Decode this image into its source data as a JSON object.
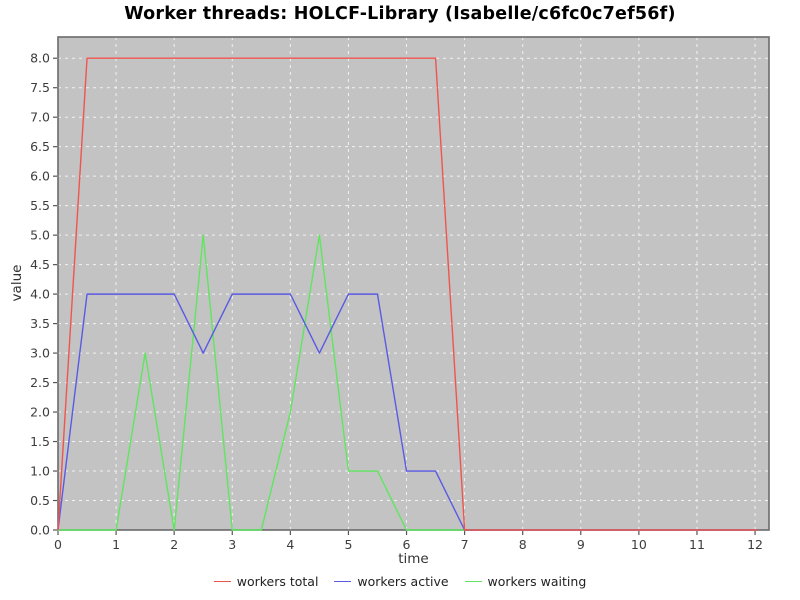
{
  "colors": {
    "page_bg": "#ffffff",
    "plot_bg": "#c3c3c3",
    "grid": "#f2f2f2",
    "frame": "#6a6a6a",
    "tick": "#555555",
    "tick_text": "#3d3d3d",
    "title_text": "#000000",
    "axis_label_text": "#333333",
    "legend_text": "#222222"
  },
  "chart_data": {
    "type": "line",
    "title": "Worker threads: HOLCF-Library (Isabelle/c6fc0c7ef56f)",
    "xlabel": "time",
    "ylabel": "value",
    "xlim": [
      0,
      12.24
    ],
    "ylim": [
      0,
      8.36
    ],
    "x_ticks": [
      0,
      1,
      2,
      3,
      4,
      5,
      6,
      7,
      8,
      9,
      10,
      11,
      12
    ],
    "y_ticks": [
      0.0,
      0.5,
      1.0,
      1.5,
      2.0,
      2.5,
      3.0,
      3.5,
      4.0,
      4.5,
      5.0,
      5.5,
      6.0,
      6.5,
      7.0,
      7.5,
      8.0
    ],
    "grid": true,
    "legend_position": "bottom",
    "series": [
      {
        "name": "workers total",
        "color": "#f0544f",
        "points": [
          [
            0,
            0
          ],
          [
            0.5,
            8
          ],
          [
            6.5,
            8
          ],
          [
            7,
            0
          ],
          [
            12.05,
            0
          ]
        ]
      },
      {
        "name": "workers active",
        "color": "#5a5ae4",
        "points": [
          [
            0,
            0
          ],
          [
            0.5,
            4
          ],
          [
            2,
            4
          ],
          [
            2.5,
            3
          ],
          [
            3,
            4
          ],
          [
            4,
            4
          ],
          [
            4.5,
            3
          ],
          [
            5,
            4
          ],
          [
            5.5,
            4
          ],
          [
            6,
            1
          ],
          [
            6.5,
            1
          ],
          [
            7,
            0
          ],
          [
            12.05,
            0
          ]
        ]
      },
      {
        "name": "workers waiting",
        "color": "#5fe65f",
        "points": [
          [
            0,
            0
          ],
          [
            1,
            0
          ],
          [
            1.5,
            3
          ],
          [
            2,
            0
          ],
          [
            2.5,
            5
          ],
          [
            3,
            0
          ],
          [
            3.5,
            0
          ],
          [
            4,
            2
          ],
          [
            4.5,
            5
          ],
          [
            5,
            1
          ],
          [
            5.5,
            1
          ],
          [
            6,
            0
          ],
          [
            12.05,
            0
          ]
        ]
      }
    ]
  }
}
